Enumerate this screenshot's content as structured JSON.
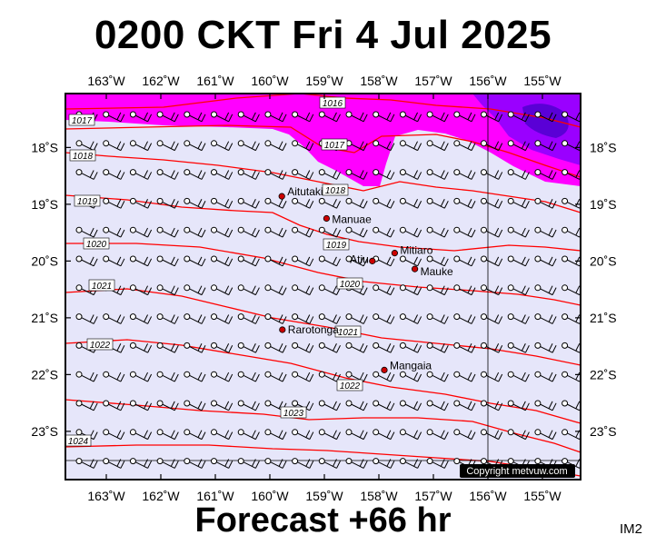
{
  "header": {
    "title": "0200 CKT Fri 4 Jul 2025"
  },
  "footer": {
    "forecast": "Forecast +66 hr"
  },
  "image_code": "IM2",
  "copyright": "Copyright metvuw.com",
  "colors": {
    "sea": "#e6e6fa",
    "isobar": "#ff0000",
    "rain_light": "#ff00ff",
    "rain_medium": "#9a00ff",
    "rain_heavy": "#5a00d6",
    "place_marker": "#cc0000"
  },
  "map": {
    "lon_range": [
      -163.75,
      -154.3
    ],
    "lat_range": [
      -23.85,
      -17.05
    ],
    "longitude_ticks": [
      {
        "value": -163,
        "label": "163˚W"
      },
      {
        "value": -162,
        "label": "162˚W"
      },
      {
        "value": -161,
        "label": "161˚W"
      },
      {
        "value": -160,
        "label": "160˚W"
      },
      {
        "value": -159,
        "label": "159˚W"
      },
      {
        "value": -158,
        "label": "158˚W"
      },
      {
        "value": -157,
        "label": "157˚W"
      },
      {
        "value": -156,
        "label": "156˚W"
      },
      {
        "value": -155,
        "label": "155˚W"
      }
    ],
    "latitude_ticks": [
      {
        "value": -18,
        "label": "18˚S"
      },
      {
        "value": -19,
        "label": "19˚S"
      },
      {
        "value": -20,
        "label": "20˚S"
      },
      {
        "value": -21,
        "label": "21˚S"
      },
      {
        "value": -22,
        "label": "22˚S"
      },
      {
        "value": -23,
        "label": "23˚S"
      }
    ],
    "places": [
      {
        "name": "Aitutaki",
        "lon": -159.78,
        "lat": -18.86
      },
      {
        "name": "Manuae",
        "lon": -158.96,
        "lat": -19.25
      },
      {
        "name": "Mitiaro",
        "lon": -157.71,
        "lat": -19.86
      },
      {
        "name": "Atiu",
        "lon": -158.12,
        "lat": -20.0
      },
      {
        "name": "Mauke",
        "lon": -157.34,
        "lat": -20.14
      },
      {
        "name": "Rarotonga",
        "lon": -159.77,
        "lat": -21.21
      },
      {
        "name": "Mangaia",
        "lon": -157.9,
        "lat": -21.92
      }
    ],
    "isobar_labels": [
      "1016",
      "1017",
      "1017",
      "1018",
      "1018",
      "1019",
      "1019",
      "1020",
      "1020",
      "1021",
      "1021",
      "1022",
      "1022",
      "1023",
      "1024"
    ]
  }
}
